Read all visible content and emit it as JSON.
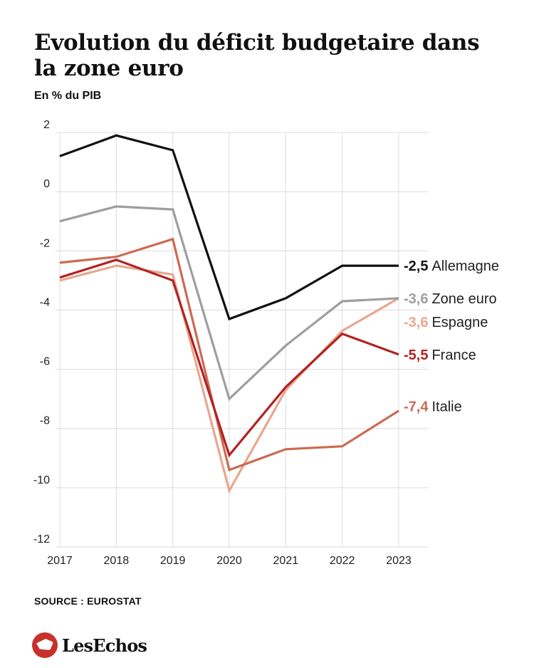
{
  "header": {
    "title": "Evolution du déficit budgetaire dans la zone euro",
    "subtitle": "En % du PIB"
  },
  "footer": {
    "source": "SOURCE : EUROSTAT",
    "brand": "LesEchos"
  },
  "chart_data": {
    "type": "line",
    "title": "Evolution du déficit budgetaire dans la zone euro",
    "ylabel": "En % du PIB",
    "xlabel": "",
    "x": [
      "2017",
      "2018",
      "2019",
      "2020",
      "2021",
      "2022",
      "2023"
    ],
    "ylim": [
      -12,
      2
    ],
    "yticks": [
      2,
      0,
      -2,
      -4,
      -6,
      -8,
      -10,
      -12
    ],
    "grid": true,
    "series": [
      {
        "name": "Allemagne",
        "color": "#111111",
        "values": [
          1.2,
          1.9,
          1.4,
          -4.3,
          -3.6,
          -2.5,
          -2.5
        ],
        "end_label": "-2,5"
      },
      {
        "name": "Zone euro",
        "color": "#9e9e9e",
        "values": [
          -1.0,
          -0.5,
          -0.6,
          -7.0,
          -5.2,
          -3.7,
          -3.6
        ],
        "end_label": "-3,6"
      },
      {
        "name": "Espagne",
        "color": "#e8a78f",
        "values": [
          -3.0,
          -2.5,
          -2.8,
          -10.1,
          -6.7,
          -4.7,
          -3.6
        ],
        "end_label": "-3,6"
      },
      {
        "name": "France",
        "color": "#b32222",
        "values": [
          -2.9,
          -2.3,
          -3.0,
          -8.9,
          -6.6,
          -4.8,
          -5.5
        ],
        "end_label": "-5,5"
      },
      {
        "name": "Italie",
        "color": "#cc6a52",
        "values": [
          -2.4,
          -2.2,
          -1.6,
          -9.4,
          -8.7,
          -8.6,
          -7.4
        ],
        "end_label": "-7,4"
      }
    ]
  }
}
